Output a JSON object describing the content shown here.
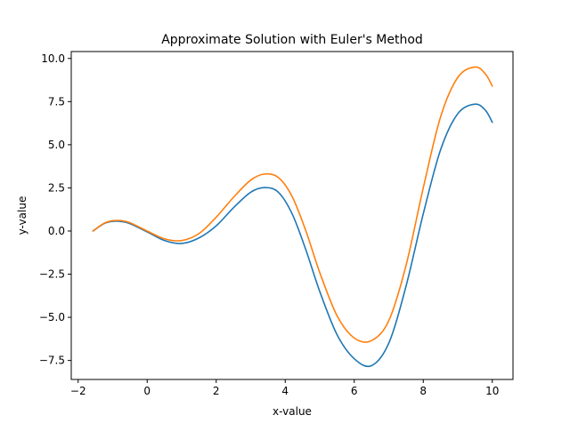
{
  "chart_data": {
    "type": "line",
    "title": "Approximate Solution with Euler's Method",
    "xlabel": "x-value",
    "ylabel": "y-value",
    "xlim": [
      -2.2,
      10.6
    ],
    "ylim": [
      -8.6,
      10.4
    ],
    "xticks": [
      -2,
      0,
      2,
      4,
      6,
      8,
      10
    ],
    "xtick_labels": [
      "−2",
      "0",
      "2",
      "4",
      "6",
      "8",
      "10"
    ],
    "yticks": [
      -7.5,
      -5.0,
      -2.5,
      0.0,
      2.5,
      5.0,
      7.5,
      10.0
    ],
    "ytick_labels": [
      "−7.5",
      "−5.0",
      "−2.5",
      "0.0",
      "2.5",
      "5.0",
      "7.5",
      "10.0"
    ],
    "grid": false,
    "legend": false,
    "series": [
      {
        "color": "#1f77b4",
        "x": [
          -1.57,
          -1.25,
          -1.0,
          -0.75,
          -0.5,
          0.0,
          0.5,
          1.0,
          1.5,
          2.0,
          2.5,
          3.0,
          3.4,
          3.8,
          4.2,
          4.6,
          5.0,
          5.5,
          6.0,
          6.5,
          7.0,
          7.5,
          8.0,
          8.5,
          9.0,
          9.5,
          9.8,
          10.0
        ],
        "y": [
          0.0,
          0.43,
          0.56,
          0.55,
          0.43,
          -0.05,
          -0.55,
          -0.72,
          -0.4,
          0.3,
          1.35,
          2.25,
          2.52,
          2.25,
          1.0,
          -1.1,
          -3.5,
          -6.0,
          -7.4,
          -7.8,
          -6.5,
          -3.2,
          1.0,
          4.7,
          6.8,
          7.35,
          7.0,
          6.3
        ]
      },
      {
        "color": "#ff7f0e",
        "x": [
          -1.57,
          -1.25,
          -1.0,
          -0.75,
          -0.5,
          0.0,
          0.5,
          1.0,
          1.5,
          2.0,
          2.5,
          3.0,
          3.4,
          3.8,
          4.2,
          4.6,
          5.0,
          5.5,
          6.0,
          6.5,
          7.0,
          7.5,
          8.0,
          8.5,
          9.0,
          9.5,
          9.8,
          10.0
        ],
        "y": [
          0.0,
          0.45,
          0.6,
          0.6,
          0.48,
          0.0,
          -0.45,
          -0.55,
          -0.15,
          0.8,
          1.95,
          2.95,
          3.3,
          3.1,
          2.0,
          0.0,
          -2.4,
          -4.9,
          -6.2,
          -6.35,
          -5.2,
          -2.0,
          2.5,
          6.6,
          8.9,
          9.5,
          9.1,
          8.4
        ]
      }
    ]
  }
}
